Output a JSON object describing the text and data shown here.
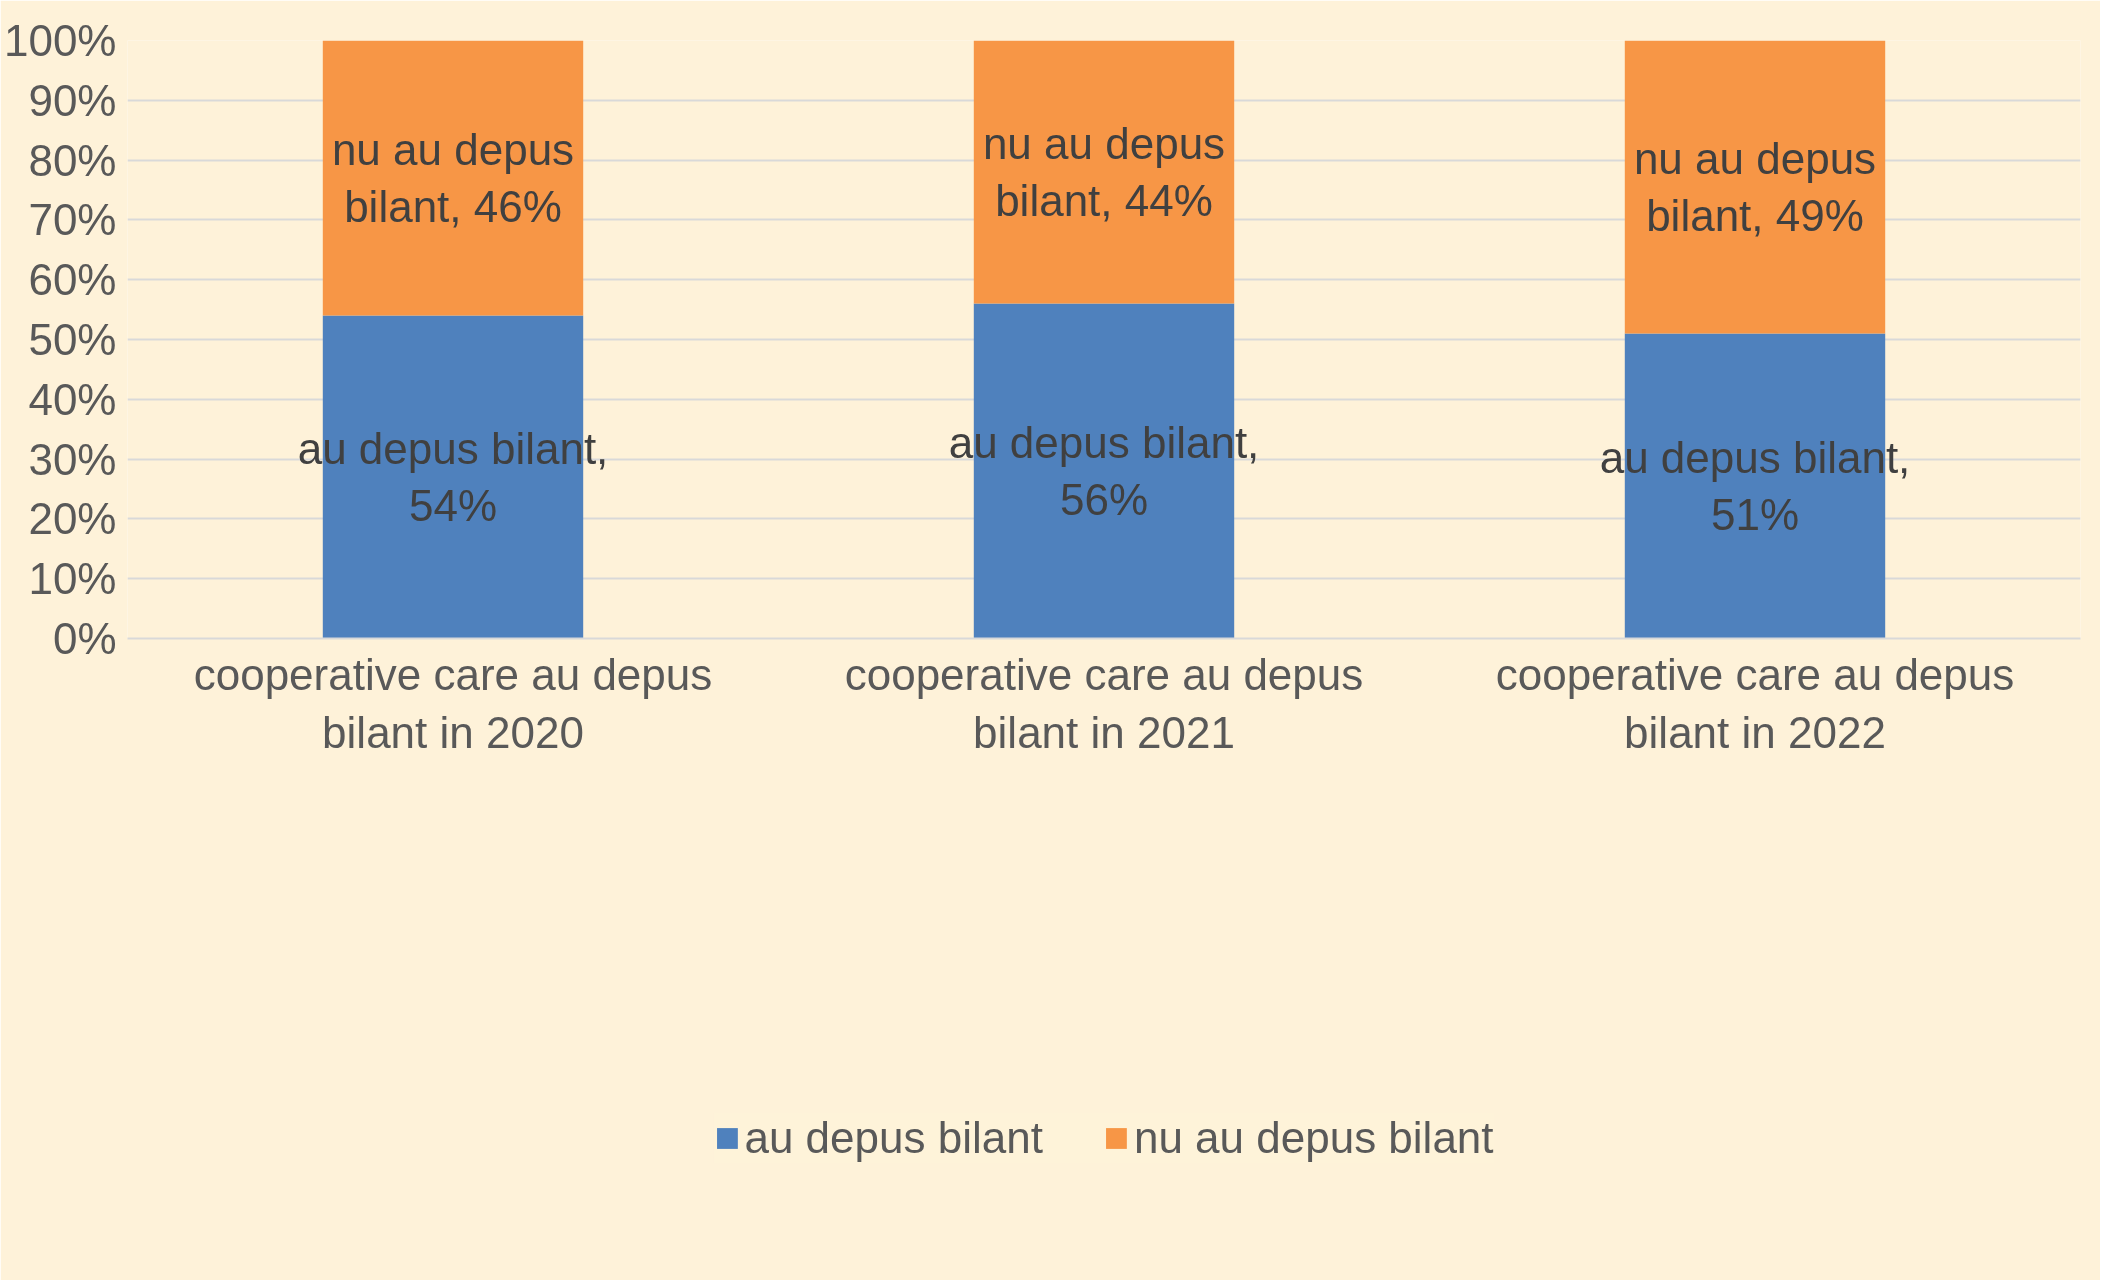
{
  "chart_data": {
    "type": "bar",
    "stacked": true,
    "categories": [
      "cooperative care au depus bilant in 2020",
      "cooperative care au depus bilant in 2021",
      "cooperative care au depus bilant in 2022"
    ],
    "series": [
      {
        "name": "au depus bilant",
        "color": "#4f81bd",
        "values": [
          54,
          56,
          51
        ],
        "value_labels": [
          "au depus bilant, 54%",
          "au depus bilant, 56%",
          "au depus bilant, 51%"
        ]
      },
      {
        "name": "nu au depus bilant",
        "color": "#f79646",
        "values": [
          46,
          44,
          49
        ],
        "value_labels": [
          "nu au depus bilant, 46%",
          "nu au depus bilant, 44%",
          "nu au depus bilant, 49%"
        ]
      }
    ],
    "ylim": [
      0,
      100
    ],
    "yticks": [
      {
        "value": 0,
        "label": "0%"
      },
      {
        "value": 10,
        "label": "10%"
      },
      {
        "value": 20,
        "label": "20%"
      },
      {
        "value": 30,
        "label": "30%"
      },
      {
        "value": 40,
        "label": "40%"
      },
      {
        "value": 50,
        "label": "50%"
      },
      {
        "value": 60,
        "label": "60%"
      },
      {
        "value": 70,
        "label": "70%"
      },
      {
        "value": 80,
        "label": "80%"
      },
      {
        "value": 90,
        "label": "90%"
      },
      {
        "value": 100,
        "label": "100%"
      }
    ],
    "grid": "y",
    "legend": "bottom"
  }
}
